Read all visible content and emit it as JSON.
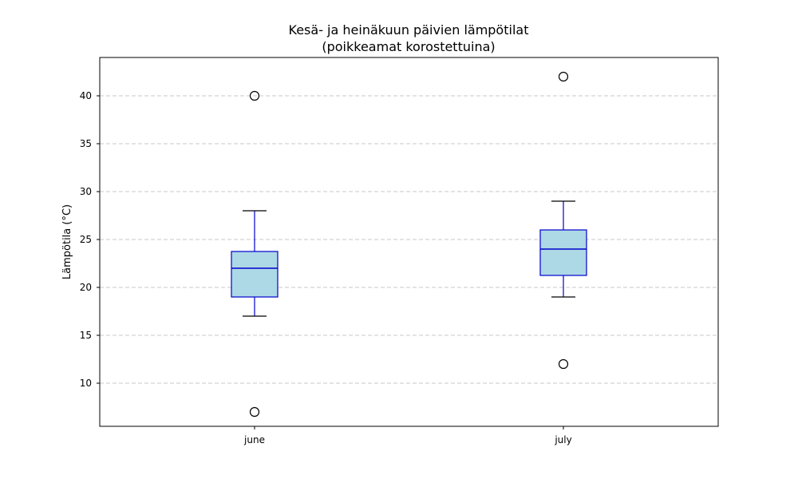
{
  "chart_data": {
    "type": "boxplot",
    "title_lines": [
      "Kesä- ja heinäkuun päivien lämpötilat",
      "(poikkeamat korostettuina)"
    ],
    "xlabel": "",
    "ylabel": "Lämpötila (°C)",
    "ylim": [
      5.5,
      44
    ],
    "yticks": [
      10,
      15,
      20,
      25,
      30,
      35,
      40
    ],
    "ytick_labels": [
      "10",
      "15",
      "20",
      "25",
      "30",
      "35",
      "40"
    ],
    "grid": {
      "y": true,
      "x": false,
      "style": "dashed"
    },
    "categories": [
      "june",
      "july"
    ],
    "boxes": [
      {
        "category": "june",
        "whisker_low": 17,
        "q1": 19,
        "median": 22,
        "q3": 23.75,
        "whisker_high": 28,
        "outliers": [
          40,
          7
        ]
      },
      {
        "category": "july",
        "whisker_low": 19,
        "q1": 21.25,
        "median": 24,
        "q3": 26,
        "whisker_high": 29,
        "outliers": [
          42,
          12
        ]
      }
    ],
    "colors": {
      "box_fill": "#add8e6",
      "box_edge": "#0000cd",
      "median": "#0000cd",
      "whisker": "#0000cd",
      "cap": "#000000",
      "outlier_edge": "#000000",
      "grid": "#c8c8c8"
    }
  }
}
